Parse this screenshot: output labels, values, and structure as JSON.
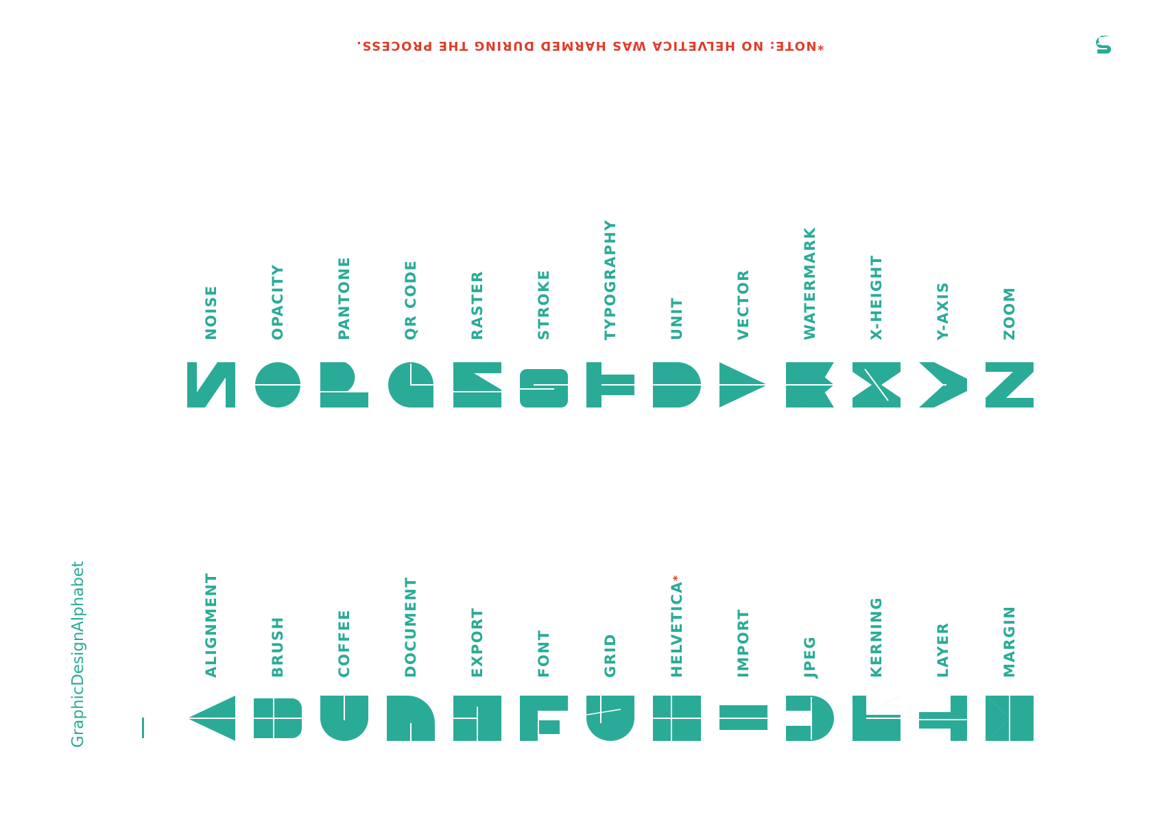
{
  "note": "*NOTE: NO HELVETICA WAS HARMED DURING THE PROCESS.",
  "logo_icon": "s-monogram-icon",
  "title_lines": [
    "Graphic",
    "Design",
    "Alphabet"
  ],
  "colors": {
    "teal": "#2aab97",
    "red": "#e03c2a",
    "background": "#ffffff"
  },
  "top_row": [
    {
      "letter": "N",
      "word": "NOISE"
    },
    {
      "letter": "O",
      "word": "OPACITY"
    },
    {
      "letter": "P",
      "word": "PANTONE"
    },
    {
      "letter": "Q",
      "word": "QR CODE"
    },
    {
      "letter": "R",
      "word": "RASTER"
    },
    {
      "letter": "S",
      "word": "STROKE"
    },
    {
      "letter": "T",
      "word": "TYPOGRAPHY"
    },
    {
      "letter": "U",
      "word": "UNIT"
    },
    {
      "letter": "V",
      "word": "VECTOR"
    },
    {
      "letter": "W",
      "word": "WATERMARK"
    },
    {
      "letter": "X",
      "word": "X-HEIGHT"
    },
    {
      "letter": "Y",
      "word": "Y-AXIS"
    },
    {
      "letter": "Z",
      "word": "ZOOM"
    }
  ],
  "bottom_row": [
    {
      "letter": "A",
      "word": "ALIGNMENT"
    },
    {
      "letter": "B",
      "word": "BRUSH"
    },
    {
      "letter": "C",
      "word": "COFFEE"
    },
    {
      "letter": "D",
      "word": "DOCUMENT"
    },
    {
      "letter": "E",
      "word": "EXPORT"
    },
    {
      "letter": "F",
      "word": "FONT"
    },
    {
      "letter": "G",
      "word": "GRID"
    },
    {
      "letter": "H",
      "word": "HELVETICA",
      "mark": "*"
    },
    {
      "letter": "I",
      "word": "IMPORT"
    },
    {
      "letter": "J",
      "word": "JPEG"
    },
    {
      "letter": "K",
      "word": "KERNING"
    },
    {
      "letter": "L",
      "word": "LAYER"
    },
    {
      "letter": "M",
      "word": "MARGIN"
    }
  ]
}
